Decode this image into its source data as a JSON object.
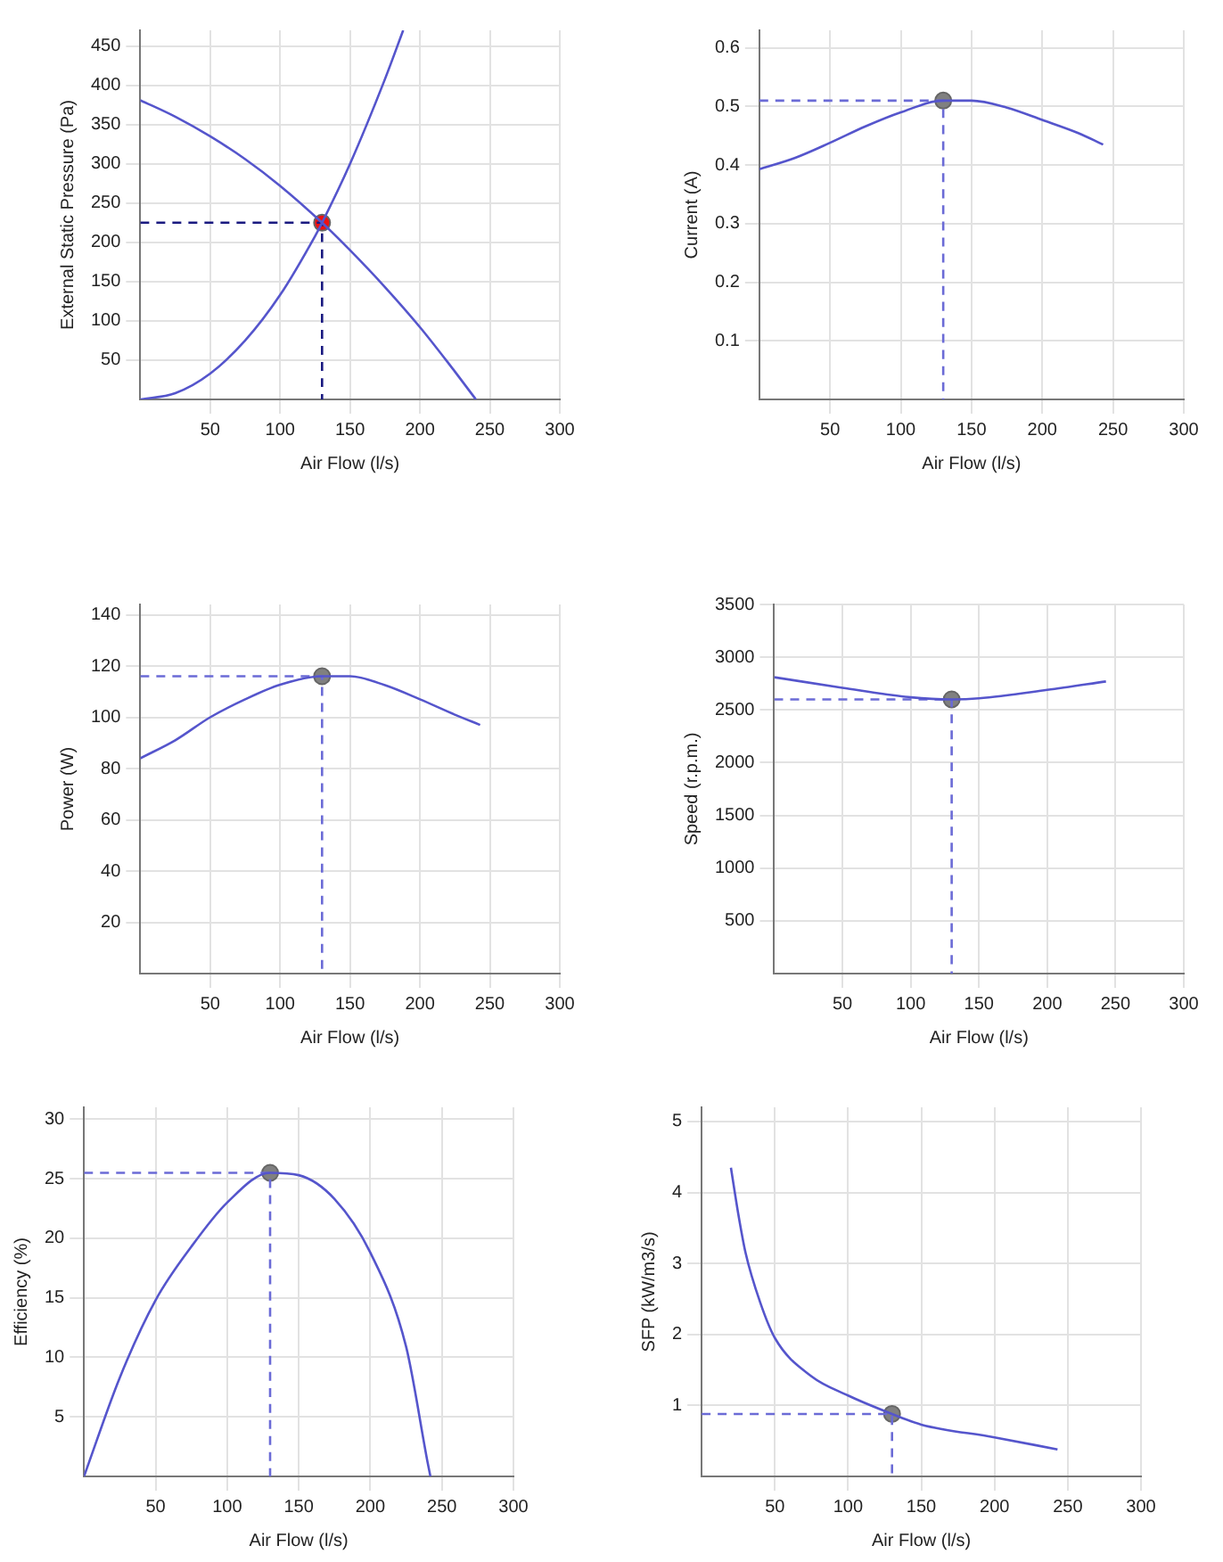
{
  "chart_data": [
    {
      "type": "line",
      "xlabel": "Air Flow (l/s)",
      "ylabel": "External Static Pressure (Pa)",
      "xlim": [
        0,
        300
      ],
      "ylim": [
        0,
        470
      ],
      "xticks": [
        50,
        100,
        150,
        200,
        250,
        300
      ],
      "yticks": [
        50,
        100,
        150,
        200,
        250,
        300,
        350,
        400,
        450
      ],
      "grid": true,
      "series": [
        {
          "type": "line",
          "color": "#5555cc",
          "marker": "none",
          "x": [
            0,
            25,
            50,
            75,
            100,
            130,
            150,
            175,
            200,
            220,
            240
          ],
          "values": [
            381,
            360,
            335,
            306,
            272,
            225,
            190,
            143,
            92,
            47,
            0
          ]
        },
        {
          "type": "line",
          "color": "#5555cc",
          "marker": "none",
          "x": [
            0,
            25,
            50,
            75,
            100,
            125,
            130,
            150,
            175,
            188
          ],
          "values": [
            0,
            8,
            33,
            75,
            133,
            208,
            225,
            300,
            408,
            470
          ]
        },
        {
          "type": "line",
          "color": "#1a1a80",
          "marker": "none",
          "line_style": "dashed",
          "x": [
            0,
            130,
            130
          ],
          "values": [
            225,
            225,
            0
          ]
        },
        {
          "type": "scatter",
          "color": "#ee1111",
          "marker": "circle",
          "x": [
            130
          ],
          "values": [
            225
          ]
        }
      ]
    },
    {
      "type": "line",
      "xlabel": "Air Flow (l/s)",
      "ylabel": "Current (A)",
      "xlim": [
        0,
        300
      ],
      "ylim": [
        0,
        0.63
      ],
      "xticks": [
        50,
        100,
        150,
        200,
        250,
        300
      ],
      "yticks": [
        0.1,
        0.2,
        0.3,
        0.4,
        0.5,
        0.6
      ],
      "grid": true,
      "series": [
        {
          "type": "line",
          "color": "#5555cc",
          "marker": "none",
          "x": [
            0,
            25,
            50,
            75,
            100,
            130,
            150,
            175,
            200,
            225,
            243
          ],
          "values": [
            0.393,
            0.412,
            0.438,
            0.466,
            0.49,
            0.51,
            0.51,
            0.498,
            0.477,
            0.455,
            0.435
          ]
        },
        {
          "type": "line",
          "color": "#6b6bd6",
          "marker": "none",
          "line_style": "dashed",
          "x": [
            0,
            130,
            130
          ],
          "values": [
            0.51,
            0.51,
            0
          ]
        },
        {
          "type": "scatter",
          "color": "#808080",
          "marker": "circle",
          "x": [
            130
          ],
          "values": [
            0.51
          ]
        }
      ]
    },
    {
      "type": "line",
      "xlabel": "Air Flow (l/s)",
      "ylabel": "Power (W)",
      "xlim": [
        0,
        300
      ],
      "ylim": [
        0,
        144
      ],
      "xticks": [
        50,
        100,
        150,
        200,
        250,
        300
      ],
      "yticks": [
        20,
        40,
        60,
        80,
        100,
        120,
        140
      ],
      "grid": true,
      "series": [
        {
          "type": "line",
          "color": "#5555cc",
          "marker": "none",
          "x": [
            0,
            25,
            50,
            75,
            100,
            130,
            150,
            175,
            200,
            225,
            243
          ],
          "values": [
            84,
            91,
            100,
            107,
            112.7,
            116,
            116,
            112.5,
            107,
            101,
            97
          ]
        },
        {
          "type": "line",
          "color": "#6b6bd6",
          "marker": "none",
          "line_style": "dashed",
          "x": [
            0,
            130,
            130
          ],
          "values": [
            116,
            116,
            0
          ]
        },
        {
          "type": "scatter",
          "color": "#808080",
          "marker": "circle",
          "x": [
            130
          ],
          "values": [
            116
          ]
        }
      ]
    },
    {
      "type": "line",
      "xlabel": "Air Flow (l/s)",
      "ylabel": "Speed (r.p.m.)",
      "xlim": [
        0,
        300
      ],
      "ylim": [
        0,
        3500
      ],
      "xticks": [
        50,
        100,
        150,
        200,
        250,
        300
      ],
      "yticks": [
        500,
        1000,
        1500,
        2000,
        2500,
        3000,
        3500
      ],
      "grid": true,
      "series": [
        {
          "type": "line",
          "color": "#5555cc",
          "marker": "none",
          "x": [
            0,
            50,
            100,
            130,
            150,
            200,
            243
          ],
          "values": [
            2810,
            2710,
            2620,
            2600,
            2610,
            2690,
            2770
          ]
        },
        {
          "type": "line",
          "color": "#6b6bd6",
          "marker": "none",
          "line_style": "dashed",
          "x": [
            0,
            130,
            130
          ],
          "values": [
            2600,
            2600,
            0
          ]
        },
        {
          "type": "scatter",
          "color": "#808080",
          "marker": "circle",
          "x": [
            130
          ],
          "values": [
            2600
          ]
        }
      ]
    },
    {
      "type": "line",
      "xlabel": "Air Flow (l/s)",
      "ylabel": "Efficiency (%)",
      "xlim": [
        0,
        300
      ],
      "ylim": [
        0,
        31
      ],
      "xticks": [
        50,
        100,
        150,
        200,
        250,
        300
      ],
      "yticks": [
        5,
        10,
        15,
        20,
        25,
        30
      ],
      "grid": true,
      "series": [
        {
          "type": "line",
          "color": "#5555cc",
          "marker": "none",
          "x": [
            0,
            25,
            50,
            75,
            100,
            130,
            150,
            175,
            200,
            225,
            240,
            242
          ],
          "values": [
            0,
            8.3,
            14.8,
            19.3,
            23,
            25.5,
            25.3,
            23.3,
            18.8,
            10.9,
            1.2,
            0
          ]
        },
        {
          "type": "line",
          "color": "#6b6bd6",
          "marker": "none",
          "line_style": "dashed",
          "x": [
            0,
            130,
            130
          ],
          "values": [
            25.5,
            25.5,
            0
          ]
        },
        {
          "type": "scatter",
          "color": "#808080",
          "marker": "circle",
          "x": [
            130
          ],
          "values": [
            25.5
          ]
        }
      ]
    },
    {
      "type": "line",
      "xlabel": "Air Flow (l/s)",
      "ylabel": "SFP (kW/m3/s)",
      "xlim": [
        0,
        300
      ],
      "ylim": [
        0,
        5.2
      ],
      "xticks": [
        50,
        100,
        150,
        200,
        250,
        300
      ],
      "yticks": [
        1,
        2,
        3,
        4,
        5
      ],
      "grid": true,
      "series": [
        {
          "type": "line",
          "color": "#5555cc",
          "marker": "none",
          "x": [
            20,
            25,
            30,
            40,
            50,
            75,
            100,
            130,
            150,
            200,
            243
          ],
          "values": [
            4.35,
            3.7,
            3.15,
            2.45,
            1.95,
            1.41,
            1.14,
            0.88,
            0.73,
            0.55,
            0.38
          ]
        },
        {
          "type": "line",
          "color": "#6b6bd6",
          "marker": "none",
          "line_style": "dashed",
          "x": [
            0,
            130,
            130
          ],
          "values": [
            0.88,
            0.88,
            0
          ]
        },
        {
          "type": "scatter",
          "color": "#808080",
          "marker": "circle",
          "x": [
            130
          ],
          "values": [
            0.88
          ]
        }
      ]
    }
  ]
}
